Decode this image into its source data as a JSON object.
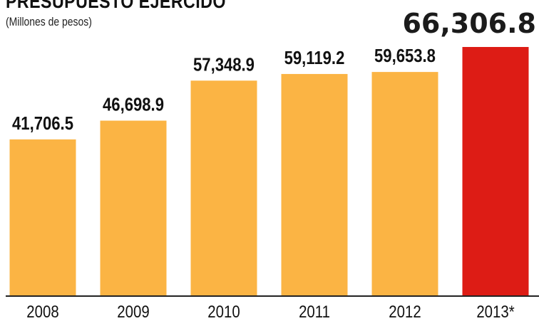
{
  "title": "PRESUPUESTO EJERCIDO",
  "subtitle": "(Millones de pesos)",
  "colors": {
    "bar": "#FBB444",
    "highlight_bar": "#DD1C15",
    "axis": "#222222"
  },
  "chart_data": {
    "type": "bar",
    "title": "PRESUPUESTO EJERCIDO",
    "subtitle": "(Millones de pesos)",
    "categories": [
      "2008",
      "2009",
      "2010",
      "2011",
      "2012",
      "2013*"
    ],
    "values": [
      41706.5,
      46698.9,
      57348.9,
      59119.2,
      59653.8,
      66306.8
    ],
    "value_labels": [
      "41,706.5",
      "46,698.9",
      "57,348.9",
      "59,119.2",
      "59,653.8",
      "66,306.8"
    ],
    "highlight_index": 5,
    "xlabel": "",
    "ylabel": "",
    "ylim": [
      0,
      66306.8
    ],
    "grid": false,
    "legend": "none"
  }
}
